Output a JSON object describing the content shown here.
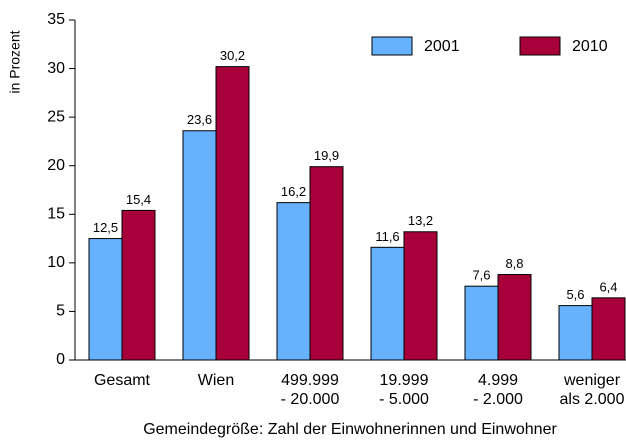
{
  "chart_data": {
    "type": "bar",
    "y_label": "in Prozent",
    "x_label": "Gemeindegröße: Zahl der Einwohnerinnen und Einwohner",
    "categories": [
      [
        "Gesamt"
      ],
      [
        "Wien"
      ],
      [
        "499.999",
        "- 20.000"
      ],
      [
        "19.999",
        "- 5.000"
      ],
      [
        "4.999",
        "- 2.000"
      ],
      [
        "weniger",
        "als 2.000"
      ]
    ],
    "series": [
      {
        "name": "2001",
        "color": "#66b2ff",
        "values": [
          12.5,
          23.6,
          16.2,
          11.6,
          7.6,
          5.6
        ],
        "value_labels": [
          "12,5",
          "23,6",
          "16,2",
          "11,6",
          "7,6",
          "5,6"
        ]
      },
      {
        "name": "2010",
        "color": "#a8003a",
        "values": [
          15.4,
          30.2,
          19.9,
          13.2,
          8.8,
          6.4
        ],
        "value_labels": [
          "15,4",
          "30,2",
          "19,9",
          "13,2",
          "8,8",
          "6,4"
        ]
      }
    ],
    "ylim": [
      0,
      35
    ],
    "yticks": [
      0,
      5,
      10,
      15,
      20,
      25,
      30,
      35
    ],
    "grid": false,
    "legend": "top-right"
  }
}
